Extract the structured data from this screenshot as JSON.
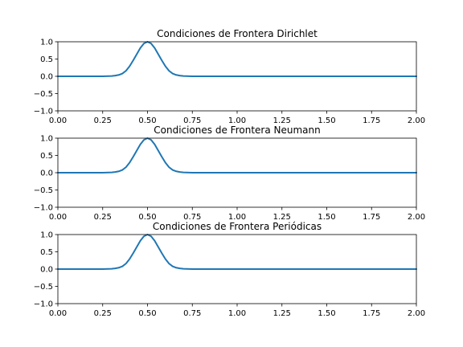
{
  "chart_data": [
    {
      "type": "line",
      "title": "Condiciones de Frontera Dirichlet",
      "xlabel": "",
      "ylabel": "",
      "xlim": [
        0,
        2
      ],
      "ylim": [
        -1,
        1
      ],
      "xticks": [
        "0.00",
        "0.25",
        "0.50",
        "0.75",
        "1.00",
        "1.25",
        "1.50",
        "1.75",
        "2.00"
      ],
      "yticks": [
        "−1.0",
        "−0.5",
        "0.0",
        "0.5",
        "1.0"
      ],
      "grid": false,
      "series": [
        {
          "color": "#1f77b4",
          "x": [
            0,
            0.05,
            0.1,
            0.15,
            0.2,
            0.25,
            0.3,
            0.32,
            0.34,
            0.36,
            0.38,
            0.4,
            0.42,
            0.44,
            0.46,
            0.48,
            0.5,
            0.52,
            0.54,
            0.56,
            0.58,
            0.6,
            0.62,
            0.64,
            0.66,
            0.68,
            0.7,
            0.75,
            0.8,
            0.9,
            1.0,
            1.25,
            1.5,
            1.75,
            2.0
          ],
          "y": [
            0,
            0,
            0,
            0,
            0,
            0,
            0.01,
            0.02,
            0.04,
            0.08,
            0.16,
            0.29,
            0.46,
            0.64,
            0.82,
            0.95,
            1.0,
            0.95,
            0.82,
            0.64,
            0.46,
            0.29,
            0.16,
            0.08,
            0.04,
            0.02,
            0.01,
            0,
            0,
            0,
            0,
            0,
            0,
            0,
            0
          ]
        }
      ]
    },
    {
      "type": "line",
      "title": "Condiciones de Frontera Neumann",
      "xlabel": "",
      "ylabel": "",
      "xlim": [
        0,
        2
      ],
      "ylim": [
        -1,
        1
      ],
      "xticks": [
        "0.00",
        "0.25",
        "0.50",
        "0.75",
        "1.00",
        "1.25",
        "1.50",
        "1.75",
        "2.00"
      ],
      "yticks": [
        "−1.0",
        "−0.5",
        "0.0",
        "0.5",
        "1.0"
      ],
      "grid": false,
      "series": [
        {
          "color": "#1f77b4",
          "x": [
            0,
            0.05,
            0.1,
            0.15,
            0.2,
            0.25,
            0.3,
            0.32,
            0.34,
            0.36,
            0.38,
            0.4,
            0.42,
            0.44,
            0.46,
            0.48,
            0.5,
            0.52,
            0.54,
            0.56,
            0.58,
            0.6,
            0.62,
            0.64,
            0.66,
            0.68,
            0.7,
            0.75,
            0.8,
            0.9,
            1.0,
            1.25,
            1.5,
            1.75,
            2.0
          ],
          "y": [
            0,
            0,
            0,
            0,
            0,
            0,
            0.01,
            0.02,
            0.04,
            0.08,
            0.16,
            0.29,
            0.46,
            0.64,
            0.82,
            0.95,
            1.0,
            0.95,
            0.82,
            0.64,
            0.46,
            0.29,
            0.16,
            0.08,
            0.04,
            0.02,
            0.01,
            0,
            0,
            0,
            0,
            0,
            0,
            0,
            0
          ]
        }
      ]
    },
    {
      "type": "line",
      "title": "Condiciones de Frontera Periódicas",
      "xlabel": "",
      "ylabel": "",
      "xlim": [
        0,
        2
      ],
      "ylim": [
        -1,
        1
      ],
      "xticks": [
        "0.00",
        "0.25",
        "0.50",
        "0.75",
        "1.00",
        "1.25",
        "1.50",
        "1.75",
        "2.00"
      ],
      "yticks": [
        "−1.0",
        "−0.5",
        "0.0",
        "0.5",
        "1.0"
      ],
      "grid": false,
      "series": [
        {
          "color": "#1f77b4",
          "x": [
            0,
            0.05,
            0.1,
            0.15,
            0.2,
            0.25,
            0.3,
            0.32,
            0.34,
            0.36,
            0.38,
            0.4,
            0.42,
            0.44,
            0.46,
            0.48,
            0.5,
            0.52,
            0.54,
            0.56,
            0.58,
            0.6,
            0.62,
            0.64,
            0.66,
            0.68,
            0.7,
            0.75,
            0.8,
            0.9,
            1.0,
            1.25,
            1.5,
            1.75,
            2.0
          ],
          "y": [
            0,
            0,
            0,
            0,
            0,
            0,
            0.01,
            0.02,
            0.04,
            0.08,
            0.16,
            0.29,
            0.46,
            0.64,
            0.82,
            0.95,
            1.0,
            0.95,
            0.82,
            0.64,
            0.46,
            0.29,
            0.16,
            0.08,
            0.04,
            0.02,
            0.01,
            0,
            0,
            0,
            0,
            0,
            0,
            0,
            0
          ]
        }
      ]
    }
  ]
}
